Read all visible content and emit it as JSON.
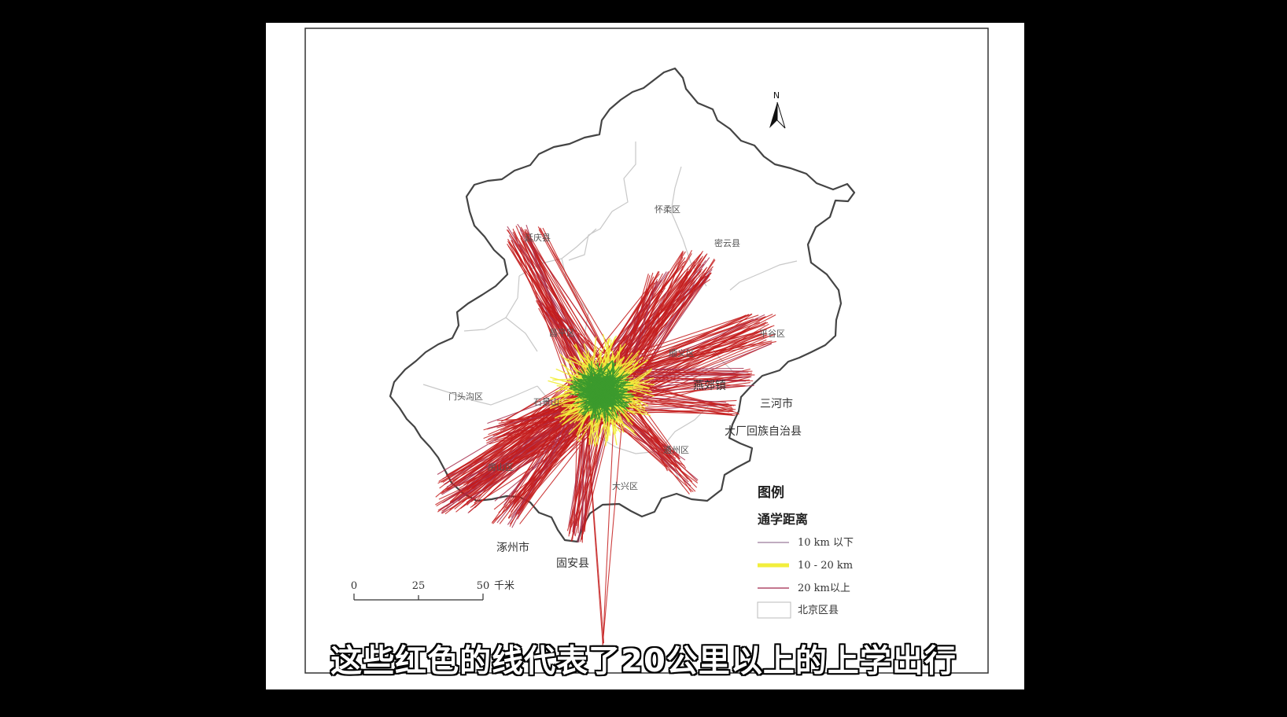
{
  "north_label": "N",
  "districts": [
    {
      "name": "怀柔区"
    },
    {
      "name": "延庆县"
    },
    {
      "name": "密云县"
    },
    {
      "name": "昌平区"
    },
    {
      "name": "顺义区"
    },
    {
      "name": "平谷区"
    },
    {
      "name": "门头沟区"
    },
    {
      "name": "石景山"
    },
    {
      "name": "房山区"
    },
    {
      "name": "大兴区"
    },
    {
      "name": "通州区"
    }
  ],
  "neighbors": [
    {
      "name": "燕郊镇"
    },
    {
      "name": "三河市"
    },
    {
      "name": "大厂回族自治县"
    },
    {
      "name": "涿州市"
    },
    {
      "name": "固安县"
    }
  ],
  "legend": {
    "title": "图例",
    "subtitle": "通学距离",
    "items": [
      {
        "label": "10 km 以下",
        "color": "#3c9a2e"
      },
      {
        "label": "10 - 20 km",
        "color": "#f2ee3c"
      },
      {
        "label": "20 km以上",
        "color": "#c41c1c"
      },
      {
        "label": "北京区县",
        "color": "#ffffff"
      }
    ]
  },
  "scale_bar": {
    "ticks": [
      "0",
      "25",
      "50"
    ],
    "unit": "千米"
  },
  "caption": "这些红色的线代表了20公里以上的上学出行"
}
